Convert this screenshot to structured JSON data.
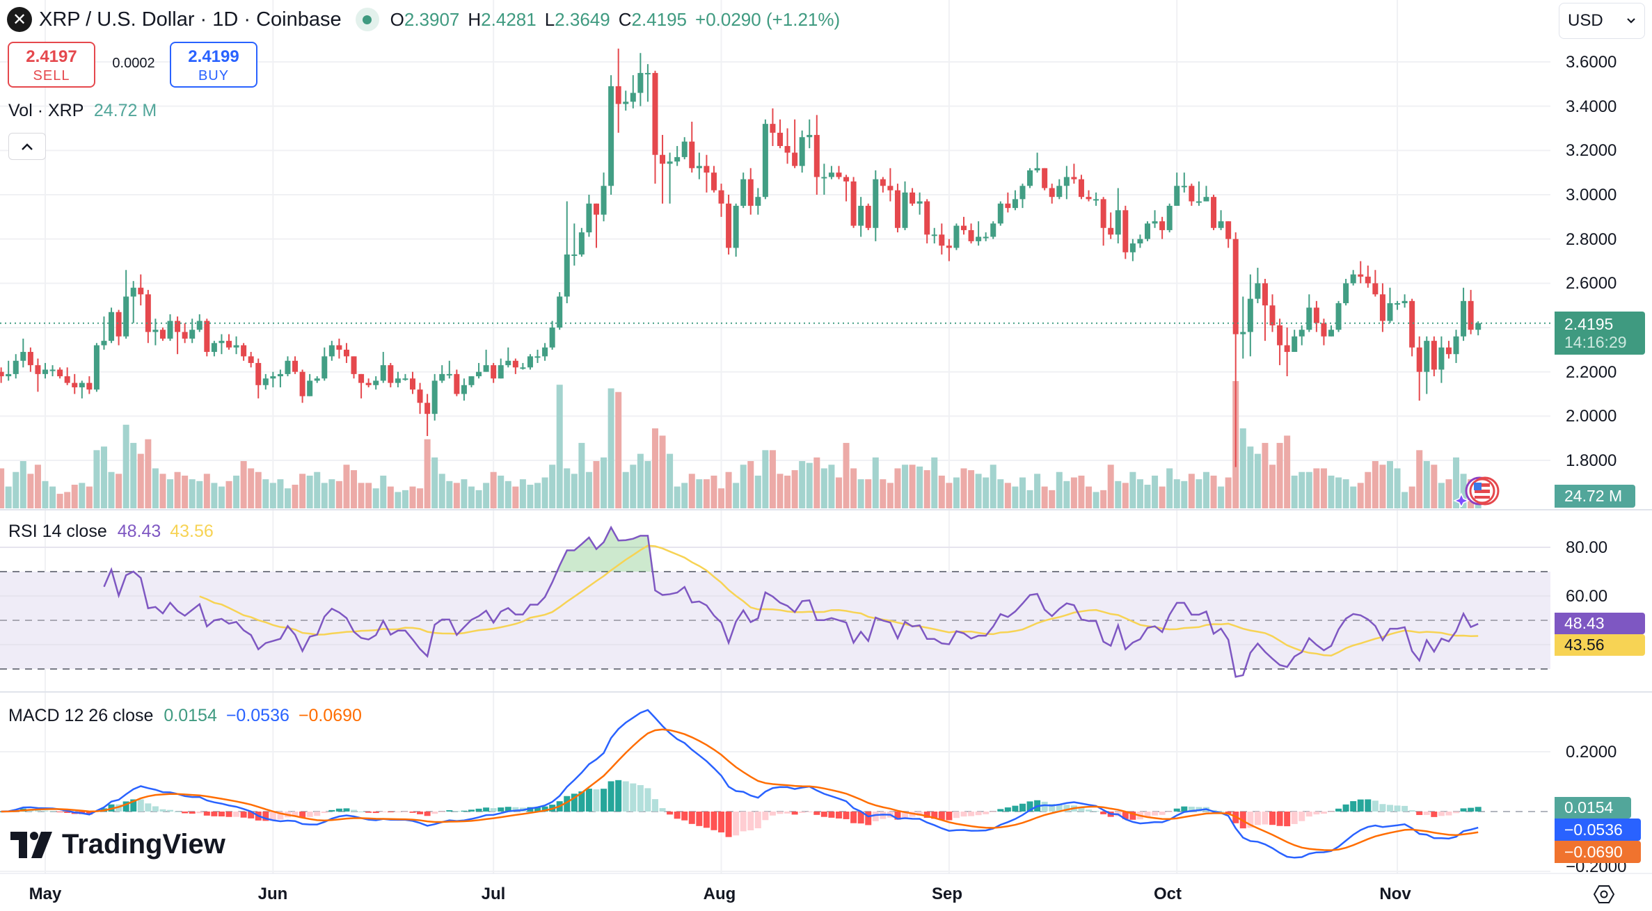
{
  "header": {
    "title": "XRP / U.S. Dollar · 1D · Coinbase",
    "logo_icon": "xrp-logo-icon",
    "ohlc": [
      {
        "key": "O",
        "value": "2.3907"
      },
      {
        "key": "H",
        "value": "2.4281"
      },
      {
        "key": "L",
        "value": "2.3649"
      },
      {
        "key": "C",
        "value": "2.4195"
      }
    ],
    "change": "+0.0290 (+1.21%)"
  },
  "trade": {
    "sell_price": "2.4197",
    "sell_label": "SELL",
    "spread": "0.0002",
    "buy_price": "2.4199",
    "buy_label": "BUY"
  },
  "volume_legend": {
    "label": "Vol · XRP",
    "value": "24.72 M"
  },
  "currency": "USD",
  "price_axis": {
    "ticks": [
      "3.6000",
      "3.4000",
      "3.2000",
      "3.0000",
      "2.8000",
      "2.6000",
      "2.2000",
      "2.0000",
      "1.8000"
    ],
    "last_price": "2.4195",
    "countdown": "14:16:29",
    "volume_tag": "24.72 M"
  },
  "rsi": {
    "label": "RSI 14 close",
    "value": "48.43",
    "ma_value": "43.56",
    "ticks": [
      "80.00",
      "60.00"
    ]
  },
  "macd": {
    "label": "MACD 12 26 close",
    "histogram": "0.0154",
    "macd": "−0.0536",
    "signal": "−0.0690",
    "ticks": [
      "0.2000",
      "−0.2000"
    ]
  },
  "time_axis": [
    "May",
    "Jun",
    "Jul",
    "Aug",
    "Sep",
    "Oct",
    "Nov"
  ],
  "branding": "TradingView",
  "colors": {
    "up": "#429e84",
    "down": "#e5484d",
    "volume_up": "#a3d3ce",
    "volume_down": "#ecaaa7",
    "rsi": "#7e57c2",
    "rsi_ma": "#f7d354",
    "rsi_band": "#efecf7",
    "macd": "#2962ff",
    "signal": "#ff6d00",
    "hist_up_strong": "#26a69a",
    "hist_up_weak": "#b2dfdb",
    "hist_down_strong": "#ff5252",
    "hist_down_weak": "#ffcdd2",
    "sell": "#e5484d",
    "buy": "#2962ff"
  },
  "chart_data": {
    "type": "candlestick",
    "interval": "1D",
    "ylim": [
      1.8,
      3.6
    ],
    "open_first": 2.2,
    "close": [
      2.18,
      2.19,
      2.25,
      2.29,
      2.23,
      2.19,
      2.21,
      2.21,
      2.18,
      2.15,
      2.13,
      2.15,
      2.12,
      2.32,
      2.34,
      2.47,
      2.36,
      2.54,
      2.58,
      2.55,
      2.38,
      2.39,
      2.35,
      2.43,
      2.38,
      2.35,
      2.39,
      2.43,
      2.29,
      2.33,
      2.34,
      2.31,
      2.32,
      2.27,
      2.24,
      2.14,
      2.17,
      2.18,
      2.19,
      2.25,
      2.2,
      2.09,
      2.16,
      2.17,
      2.27,
      2.32,
      2.3,
      2.27,
      2.19,
      2.15,
      2.14,
      2.16,
      2.23,
      2.15,
      2.17,
      2.17,
      2.12,
      2.06,
      2.01,
      2.16,
      2.19,
      2.19,
      2.1,
      2.14,
      2.18,
      2.2,
      2.23,
      2.17,
      2.23,
      2.25,
      2.22,
      2.22,
      2.27,
      2.27,
      2.31,
      2.4,
      2.54,
      2.73,
      2.73,
      2.83,
      2.96,
      2.91,
      3.04,
      3.49,
      3.41,
      3.42,
      3.46,
      3.55,
      3.55,
      3.18,
      3.14,
      3.15,
      3.17,
      3.24,
      3.12,
      3.13,
      3.1,
      3.02,
      2.96,
      2.76,
      2.95,
      3.07,
      2.95,
      2.99,
      3.32,
      3.28,
      3.22,
      3.19,
      3.13,
      3.26,
      3.27,
      3.08,
      3.08,
      3.1,
      3.08,
      3.06,
      2.86,
      2.95,
      2.85,
      3.07,
      3.04,
      3.02,
      2.85,
      3.01,
      2.96,
      2.97,
      2.82,
      2.82,
      2.77,
      2.76,
      2.86,
      2.84,
      2.79,
      2.81,
      2.81,
      2.87,
      2.96,
      2.94,
      2.98,
      3.04,
      3.11,
      3.12,
      3.03,
      2.99,
      3.04,
      3.08,
      3.07,
      2.99,
      2.98,
      2.98,
      2.85,
      2.82,
      2.93,
      2.74,
      2.78,
      2.8,
      2.87,
      2.88,
      2.84,
      2.95,
      3.04,
      3.04,
      2.97,
      2.97,
      2.99,
      2.85,
      2.88,
      2.8,
      2.37,
      2.38,
      2.53,
      2.6,
      2.5,
      2.41,
      2.32,
      2.29,
      2.36,
      2.39,
      2.49,
      2.42,
      2.36,
      2.39,
      2.51,
      2.6,
      2.64,
      2.63,
      2.6,
      2.55,
      2.43,
      2.51,
      2.51,
      2.52,
      2.31,
      2.2,
      2.34,
      2.21,
      2.31,
      2.28,
      2.36,
      2.52,
      2.39,
      2.4195
    ],
    "high": [
      2.22,
      2.25,
      2.28,
      2.35,
      2.31,
      2.26,
      2.24,
      2.23,
      2.22,
      2.22,
      2.19,
      2.16,
      2.18,
      2.33,
      2.45,
      2.49,
      2.48,
      2.66,
      2.61,
      2.64,
      2.57,
      2.44,
      2.4,
      2.46,
      2.45,
      2.42,
      2.44,
      2.46,
      2.44,
      2.34,
      2.37,
      2.37,
      2.36,
      2.33,
      2.29,
      2.26,
      2.19,
      2.2,
      2.21,
      2.27,
      2.27,
      2.21,
      2.19,
      2.18,
      2.31,
      2.34,
      2.35,
      2.33,
      2.27,
      2.19,
      2.17,
      2.18,
      2.29,
      2.24,
      2.2,
      2.19,
      2.2,
      2.15,
      2.1,
      2.19,
      2.23,
      2.25,
      2.21,
      2.17,
      2.18,
      2.24,
      2.3,
      2.24,
      2.26,
      2.31,
      2.26,
      2.24,
      2.28,
      2.3,
      2.33,
      2.43,
      2.56,
      2.97,
      2.87,
      2.85,
      3.0,
      2.96,
      3.1,
      3.54,
      3.66,
      3.47,
      3.54,
      3.64,
      3.59,
      3.56,
      3.27,
      3.19,
      3.22,
      3.26,
      3.33,
      3.19,
      3.18,
      3.13,
      3.05,
      3.0,
      2.96,
      3.1,
      3.12,
      3.03,
      3.34,
      3.39,
      3.34,
      3.3,
      3.34,
      3.29,
      3.34,
      3.36,
      3.14,
      3.13,
      3.13,
      3.09,
      3.08,
      2.99,
      2.96,
      3.11,
      3.08,
      3.12,
      3.05,
      3.06,
      3.03,
      3.01,
      2.98,
      2.85,
      2.87,
      2.8,
      2.87,
      2.9,
      2.87,
      2.88,
      2.83,
      2.88,
      2.97,
      3.01,
      3.02,
      3.05,
      3.12,
      3.19,
      3.12,
      3.05,
      3.07,
      3.13,
      3.14,
      3.09,
      3.02,
      3.01,
      2.99,
      2.92,
      3.03,
      2.95,
      2.8,
      2.82,
      2.88,
      2.93,
      2.9,
      2.96,
      3.1,
      3.1,
      3.05,
      3.06,
      3.04,
      3.0,
      2.93,
      2.88,
      2.83,
      2.54,
      2.64,
      2.67,
      2.62,
      2.55,
      2.44,
      2.4,
      2.39,
      2.41,
      2.55,
      2.52,
      2.44,
      2.41,
      2.52,
      2.62,
      2.66,
      2.7,
      2.68,
      2.66,
      2.6,
      2.58,
      2.52,
      2.55,
      2.53,
      2.36,
      2.36,
      2.36,
      2.36,
      2.34,
      2.39,
      2.58,
      2.57,
      2.4281
    ],
    "low": [
      2.15,
      2.16,
      2.17,
      2.22,
      2.2,
      2.11,
      2.17,
      2.18,
      2.17,
      2.14,
      2.1,
      2.08,
      2.1,
      2.11,
      2.3,
      2.33,
      2.32,
      2.35,
      2.42,
      2.5,
      2.33,
      2.32,
      2.34,
      2.34,
      2.28,
      2.33,
      2.33,
      2.38,
      2.27,
      2.27,
      2.28,
      2.3,
      2.28,
      2.25,
      2.22,
      2.08,
      2.12,
      2.13,
      2.13,
      2.18,
      2.19,
      2.06,
      2.09,
      2.15,
      2.16,
      2.25,
      2.26,
      2.24,
      2.17,
      2.08,
      2.13,
      2.12,
      2.15,
      2.13,
      2.13,
      2.16,
      2.1,
      2.01,
      1.91,
      1.98,
      2.15,
      2.17,
      2.09,
      2.07,
      2.13,
      2.17,
      2.2,
      2.15,
      2.17,
      2.22,
      2.19,
      2.21,
      2.21,
      2.24,
      2.25,
      2.3,
      2.39,
      2.51,
      2.68,
      2.72,
      2.81,
      2.76,
      2.88,
      3.0,
      3.28,
      3.38,
      3.39,
      3.4,
      3.42,
      3.05,
      2.96,
      2.96,
      3.13,
      3.16,
      3.1,
      3.07,
      3.01,
      3.01,
      2.9,
      2.73,
      2.72,
      2.94,
      2.91,
      2.91,
      2.98,
      3.22,
      3.21,
      3.14,
      3.12,
      3.1,
      3.21,
      3.0,
      3.0,
      3.07,
      3.07,
      2.97,
      2.85,
      2.81,
      2.84,
      2.79,
      3.01,
      2.97,
      2.83,
      2.84,
      2.95,
      2.91,
      2.78,
      2.78,
      2.73,
      2.7,
      2.75,
      2.82,
      2.78,
      2.77,
      2.79,
      2.8,
      2.86,
      2.92,
      2.93,
      2.94,
      3.03,
      3.1,
      3.02,
      2.96,
      2.98,
      2.98,
      3.05,
      2.98,
      2.97,
      2.95,
      2.77,
      2.8,
      2.78,
      2.71,
      2.7,
      2.76,
      2.79,
      2.85,
      2.8,
      2.83,
      2.95,
      3.01,
      2.95,
      2.95,
      2.97,
      2.84,
      2.84,
      2.76,
      1.77,
      2.26,
      2.27,
      2.51,
      2.34,
      2.38,
      2.23,
      2.18,
      2.3,
      2.32,
      2.38,
      2.38,
      2.32,
      2.36,
      2.38,
      2.5,
      2.59,
      2.6,
      2.58,
      2.54,
      2.38,
      2.42,
      2.48,
      2.49,
      2.27,
      2.07,
      2.1,
      2.18,
      2.15,
      2.26,
      2.24,
      2.34,
      2.37,
      2.3649
    ],
    "volume_unit": "M",
    "volume": [
      110,
      60,
      100,
      130,
      95,
      120,
      75,
      60,
      40,
      45,
      65,
      70,
      60,
      160,
      170,
      100,
      95,
      230,
      180,
      150,
      190,
      110,
      95,
      80,
      100,
      90,
      80,
      75,
      95,
      70,
      60,
      75,
      90,
      130,
      110,
      100,
      80,
      70,
      80,
      55,
      65,
      95,
      90,
      100,
      70,
      80,
      75,
      120,
      105,
      70,
      70,
      55,
      90,
      60,
      45,
      50,
      60,
      55,
      190,
      140,
      95,
      75,
      70,
      80,
      60,
      50,
      70,
      100,
      90,
      75,
      60,
      80,
      65,
      70,
      85,
      120,
      340,
      110,
      95,
      180,
      100,
      130,
      140,
      330,
      320,
      100,
      120,
      150,
      130,
      220,
      200,
      150,
      60,
      70,
      95,
      80,
      80,
      90,
      55,
      100,
      70,
      120,
      130,
      90,
      160,
      160,
      95,
      90,
      105,
      130,
      125,
      140,
      110,
      120,
      85,
      180,
      110,
      80,
      80,
      140,
      80,
      70,
      110,
      120,
      120,
      115,
      105,
      140,
      90,
      70,
      85,
      110,
      105,
      95,
      85,
      120,
      80,
      70,
      60,
      85,
      50,
      95,
      60,
      50,
      100,
      75,
      85,
      90,
      60,
      45,
      50,
      120,
      75,
      70,
      100,
      80,
      65,
      90,
      60,
      110,
      80,
      75,
      95,
      80,
      100,
      90,
      60,
      85,
      350,
      220,
      170,
      150,
      180,
      120,
      180,
      200,
      90,
      100,
      100,
      110,
      110,
      90,
      85,
      80,
      60,
      70,
      100,
      130,
      120,
      130,
      110,
      45,
      60,
      160,
      130,
      120,
      70,
      80,
      140,
      95,
      80,
      24.72
    ],
    "indicators": [
      {
        "name": "RSI",
        "length": 14,
        "source": "close",
        "ma_length": 14,
        "levels": [
          70,
          50,
          30
        ],
        "ylim": [
          20,
          90
        ]
      },
      {
        "name": "MACD",
        "fast": 12,
        "slow": 26,
        "signal": 9,
        "source": "close"
      }
    ]
  }
}
